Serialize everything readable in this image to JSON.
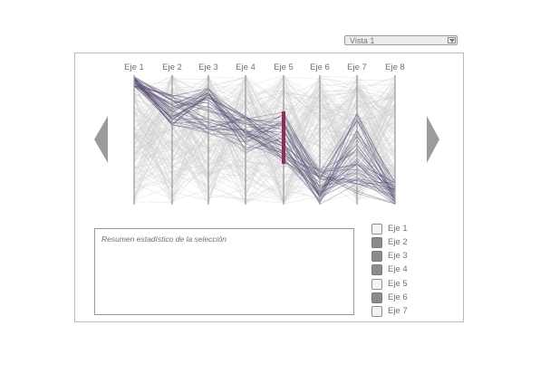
{
  "view_selector": {
    "value": "Vista 1"
  },
  "axes": [
    "Eje 1",
    "Eje 2",
    "Eje 3",
    "Eje 4",
    "Eje 5",
    "Eje 6",
    "Eje 7",
    "Eje 8"
  ],
  "summary": {
    "title": "Resumen estadístico de la selección"
  },
  "axis_toggles": [
    {
      "label": "Eje 1",
      "checked": false
    },
    {
      "label": "Eje 2",
      "checked": true
    },
    {
      "label": "Eje 3",
      "checked": true
    },
    {
      "label": "Eje 4",
      "checked": true
    },
    {
      "label": "Eje 5",
      "checked": false
    },
    {
      "label": "Eje 6",
      "checked": true
    },
    {
      "label": "Eje 7",
      "checked": false
    }
  ],
  "icons": {
    "previous": "triangle-left-icon",
    "next": "triangle-right-icon",
    "dropdown": "chevron-down-icon"
  },
  "colors": {
    "context_lines": "#d0d0d0",
    "selected_lines": "#5a4f75",
    "brush": "#8a2e55",
    "arrows": "#9b9b9b"
  }
}
